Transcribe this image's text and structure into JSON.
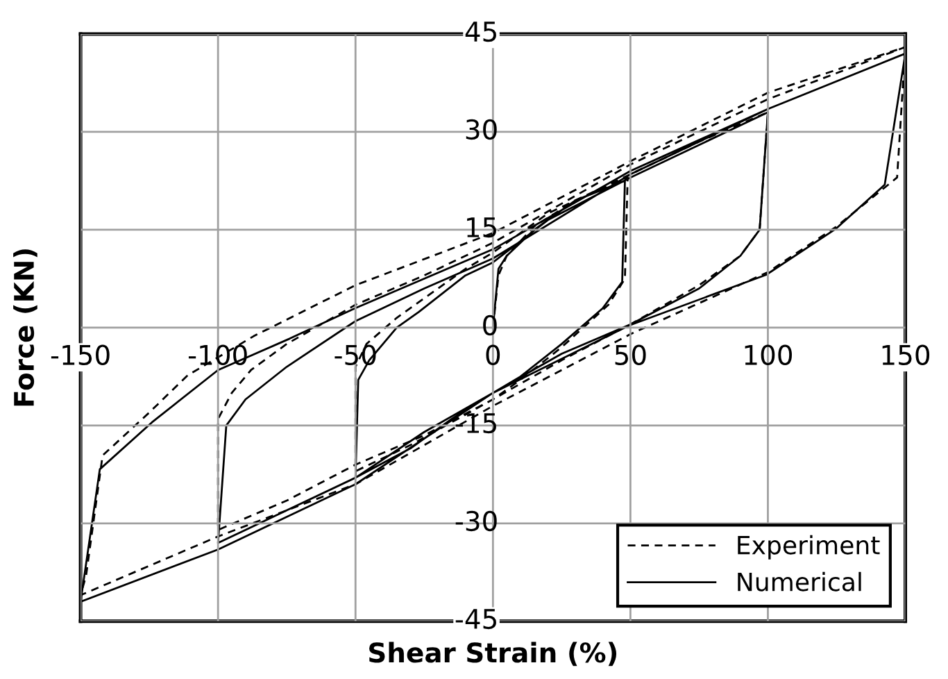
{
  "chart_data": {
    "type": "line",
    "xlabel": "Shear Strain (%)",
    "ylabel": "Force (KN)",
    "xlim": [
      -150,
      150
    ],
    "xticks": [
      -150,
      -100,
      -50,
      0,
      50,
      100,
      150
    ],
    "ylim": [
      -45,
      45
    ],
    "yticks": [
      -45,
      -30,
      -15,
      0,
      15,
      30,
      45
    ],
    "grid": true,
    "legend": "bottom right",
    "series": [
      {
        "name": "Experiment",
        "color": "#000000",
        "line_style": "dashed",
        "x": [
          0,
          2,
          5,
          15,
          30,
          49,
          48,
          42,
          25,
          10,
          0,
          -15,
          -30,
          -50,
          -50,
          -46,
          -35,
          -25,
          -10,
          0,
          20,
          50,
          75,
          100,
          97,
          90,
          75,
          50,
          25,
          0,
          -25,
          -50,
          -75,
          -100,
          -100,
          -95,
          -88,
          -75,
          -50,
          -25,
          0,
          50,
          100,
          150,
          147,
          125,
          100,
          50,
          0,
          -50,
          -100,
          -150,
          -148,
          -142,
          -125,
          -111,
          -87,
          -50,
          0,
          50,
          100,
          150
        ],
        "values": [
          0,
          8,
          11,
          15.5,
          19.5,
          23,
          7.5,
          3.5,
          -3,
          -8,
          -11,
          -14.5,
          -18,
          -22,
          -6,
          -2.5,
          1.5,
          4.5,
          9,
          11.5,
          17.5,
          23.5,
          28.5,
          33,
          15,
          11,
          6.5,
          0.5,
          -5,
          -11,
          -16.5,
          -21,
          -26.5,
          -31,
          -14,
          -10,
          -6.5,
          -2.5,
          3.5,
          8,
          13,
          25,
          35,
          43,
          23,
          15.5,
          8.5,
          -1,
          -12,
          -24,
          -32,
          -41,
          -38,
          -19.6,
          -13,
          -7.3,
          -1.3,
          6.5,
          14.5,
          25.5,
          36,
          43
        ]
      },
      {
        "name": "Numerical",
        "color": "#000000",
        "line_style": "solid",
        "x": [
          0,
          2,
          5,
          15,
          30,
          48,
          47,
          40,
          25,
          10,
          0,
          -15,
          -30,
          -50,
          -49,
          -45,
          -35,
          -27,
          -10,
          0,
          20,
          50,
          75,
          100,
          97,
          90,
          75,
          50,
          25,
          0,
          -25,
          -50,
          -75,
          -100,
          -97,
          -90,
          -75,
          -50,
          -25,
          0,
          50,
          100,
          150,
          142.5,
          124.6,
          99.4,
          49.4,
          0,
          -50,
          -100,
          -150,
          -143,
          -124,
          -100,
          -74,
          -50,
          0,
          50,
          100,
          150
        ],
        "values": [
          0,
          9,
          11,
          15,
          19.5,
          22.5,
          7,
          3,
          -2.5,
          -7.5,
          -10,
          -14,
          -18.5,
          -23,
          -8,
          -5,
          0,
          2.4,
          8,
          10,
          16.5,
          23,
          28,
          33,
          15,
          11,
          6,
          0.5,
          -4,
          -10,
          -16,
          -23,
          -28,
          -33,
          -15,
          -11,
          -6,
          1,
          6,
          10.6,
          23.5,
          33.5,
          42,
          21.9,
          15.1,
          8.1,
          0.3,
          -10,
          -24,
          -34,
          -42,
          -21.7,
          -14.5,
          -6.5,
          -1.7,
          3,
          12,
          24,
          33.5,
          42
        ]
      }
    ]
  }
}
